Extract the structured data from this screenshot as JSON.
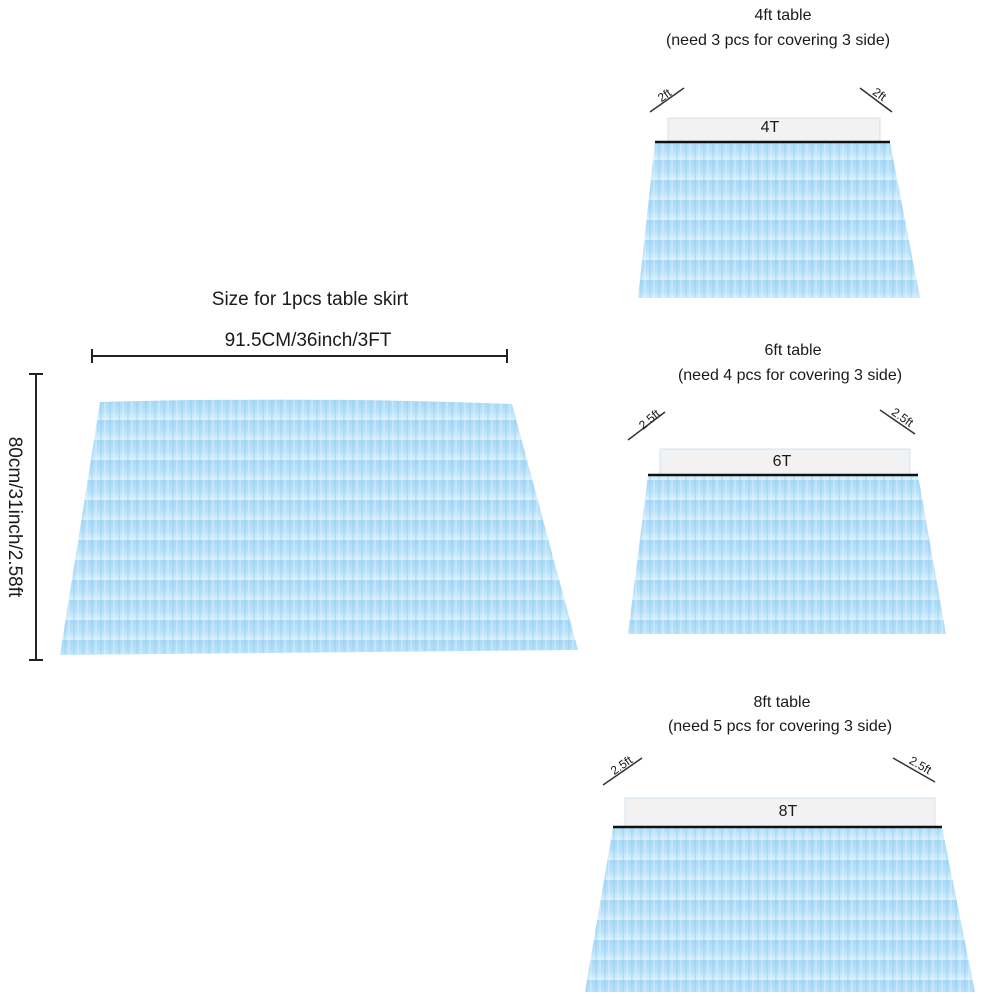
{
  "main": {
    "title": "Size for 1pcs table skirt",
    "width_label": "91.5CM/36inch/3FT",
    "height_label": "80cm/31inch/2.58ft"
  },
  "tables": [
    {
      "title": "4ft table",
      "note": "(need 3 pcs for covering 3 side)",
      "top_label": "4T",
      "left_label": "2ft",
      "right_label": "2ft"
    },
    {
      "title": "6ft table",
      "note": "(need 4 pcs for covering 3 side)",
      "top_label": "6T",
      "left_label": "2.5ft",
      "right_label": "2.5ft"
    },
    {
      "title": "8ft table",
      "note": "(need 5 pcs for covering 3 side)",
      "top_label": "8T",
      "left_label": "2.5ft",
      "right_label": "2.5ft"
    }
  ]
}
